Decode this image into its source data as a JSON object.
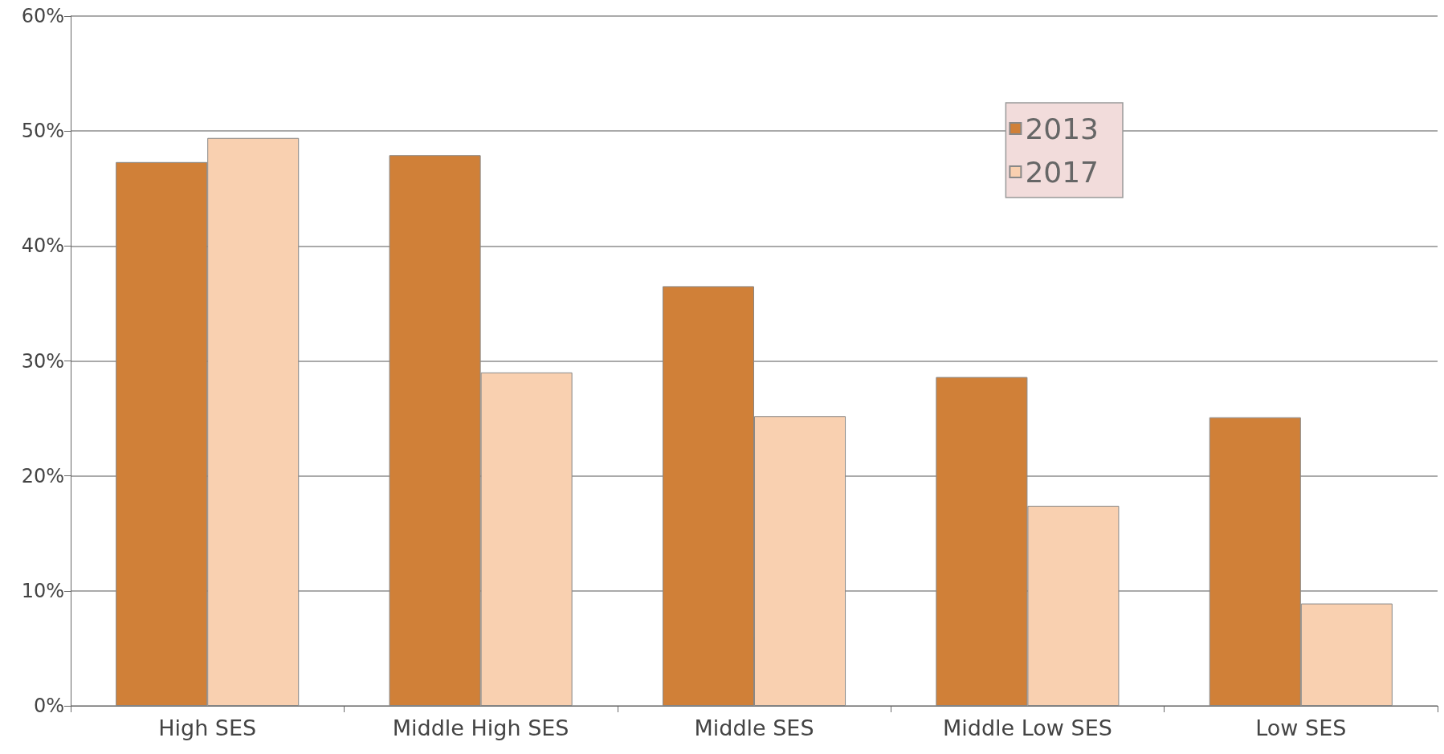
{
  "chart_data": {
    "type": "bar",
    "categories": [
      "High SES",
      "Middle High SES",
      "Middle SES",
      "Middle Low SES",
      "Low SES"
    ],
    "series": [
      {
        "name": "2013",
        "color": "#d08038",
        "values": [
          47.3,
          47.9,
          36.5,
          28.6,
          25.1
        ]
      },
      {
        "name": "2017",
        "color": "#f9d0b0",
        "values": [
          49.4,
          29.0,
          25.2,
          17.4,
          8.9
        ]
      }
    ],
    "ylim": [
      0,
      60
    ],
    "yticks": [
      {
        "value": 0,
        "label": "0%"
      },
      {
        "value": 10,
        "label": "10%"
      },
      {
        "value": 20,
        "label": "20%"
      },
      {
        "value": 30,
        "label": "30%"
      },
      {
        "value": 40,
        "label": "40%"
      },
      {
        "value": 50,
        "label": "50%"
      },
      {
        "value": 60,
        "label": "60%"
      }
    ],
    "grid": "y",
    "legend": "top right"
  }
}
